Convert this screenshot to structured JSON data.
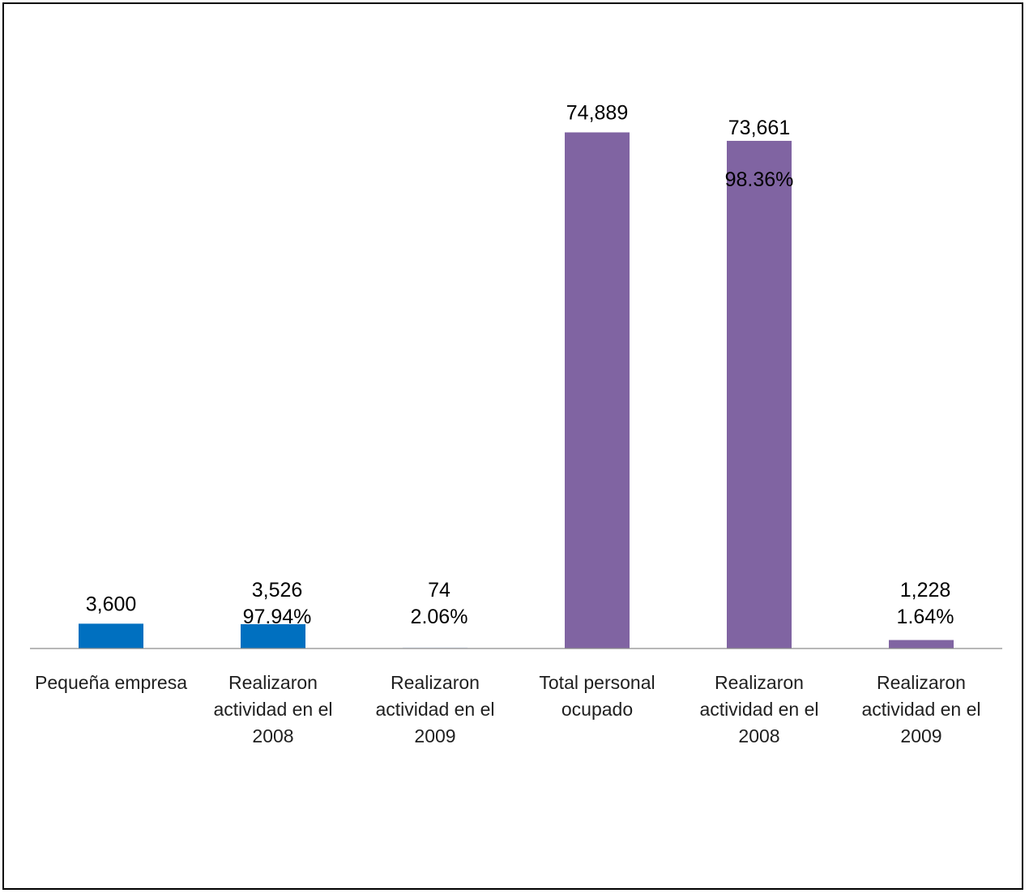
{
  "chart_data": {
    "type": "bar",
    "categories": [
      [
        "Pequeña empresa"
      ],
      [
        "Realizaron",
        "actividad en el",
        "2008"
      ],
      [
        "Realizaron",
        "actividad en el",
        "2009"
      ],
      [
        "Total personal",
        "ocupado"
      ],
      [
        "Realizaron",
        "actividad en el",
        "2008"
      ],
      [
        "Realizaron",
        "actividad en el",
        "2009"
      ]
    ],
    "values": [
      3600,
      3526,
      74,
      74889,
      73661,
      1228
    ],
    "value_labels": [
      "3,600",
      "3,526",
      "74",
      "74,889",
      "73,661",
      "1,228"
    ],
    "percent_labels": [
      "",
      "97.94%",
      "2.06%",
      "",
      "98.36%",
      "1.64%"
    ],
    "colors": [
      "#0070C0",
      "#0070C0",
      "#0070C0",
      "#8064A2",
      "#8064A2",
      "#8064A2"
    ],
    "ylim": [
      0,
      80000
    ],
    "grid": false,
    "legend": "none"
  }
}
